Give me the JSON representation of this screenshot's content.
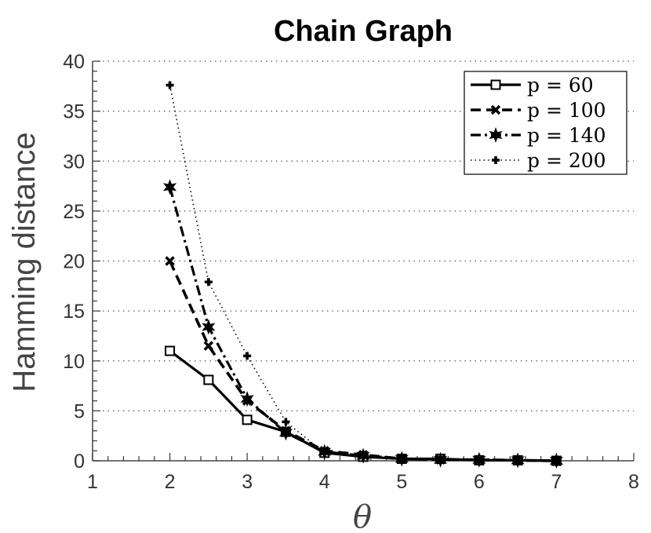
{
  "chart_data": {
    "type": "line",
    "title": "Chain Graph",
    "xlabel": "θ",
    "ylabel": "Hamming distance",
    "xlim": [
      1,
      8
    ],
    "ylim": [
      0,
      40
    ],
    "xticks": [
      1,
      2,
      3,
      4,
      5,
      6,
      7,
      8
    ],
    "yticks": [
      0,
      5,
      10,
      15,
      20,
      25,
      30,
      35,
      40
    ],
    "grid": "horizontal dotted",
    "legend_position": "top-right",
    "x": [
      2,
      2.5,
      3,
      3.5,
      4,
      4.5,
      5,
      5.5,
      6,
      6.5,
      7
    ],
    "series": [
      {
        "name": "p = 60",
        "line_style": "solid",
        "marker": "square",
        "values": [
          11.0,
          8.1,
          4.1,
          2.9,
          0.8,
          0.4,
          0.2,
          0.2,
          0.05,
          0.05,
          0.0
        ]
      },
      {
        "name": "p = 100",
        "line_style": "dashed",
        "marker": "x",
        "values": [
          20.0,
          11.5,
          6.0,
          3.0,
          1.0,
          0.6,
          0.2,
          0.1,
          0.1,
          0.05,
          0.0
        ]
      },
      {
        "name": "p = 140",
        "line_style": "dashdot",
        "marker": "star",
        "values": [
          27.4,
          13.4,
          6.2,
          2.8,
          0.9,
          0.5,
          0.2,
          0.1,
          0.1,
          0.05,
          0.0
        ]
      },
      {
        "name": "p = 200",
        "line_style": "dotted",
        "marker": "plus",
        "values": [
          37.6,
          17.9,
          10.5,
          3.9,
          0.8,
          0.6,
          0.3,
          0.2,
          0.2,
          0.1,
          0.05
        ]
      }
    ]
  }
}
